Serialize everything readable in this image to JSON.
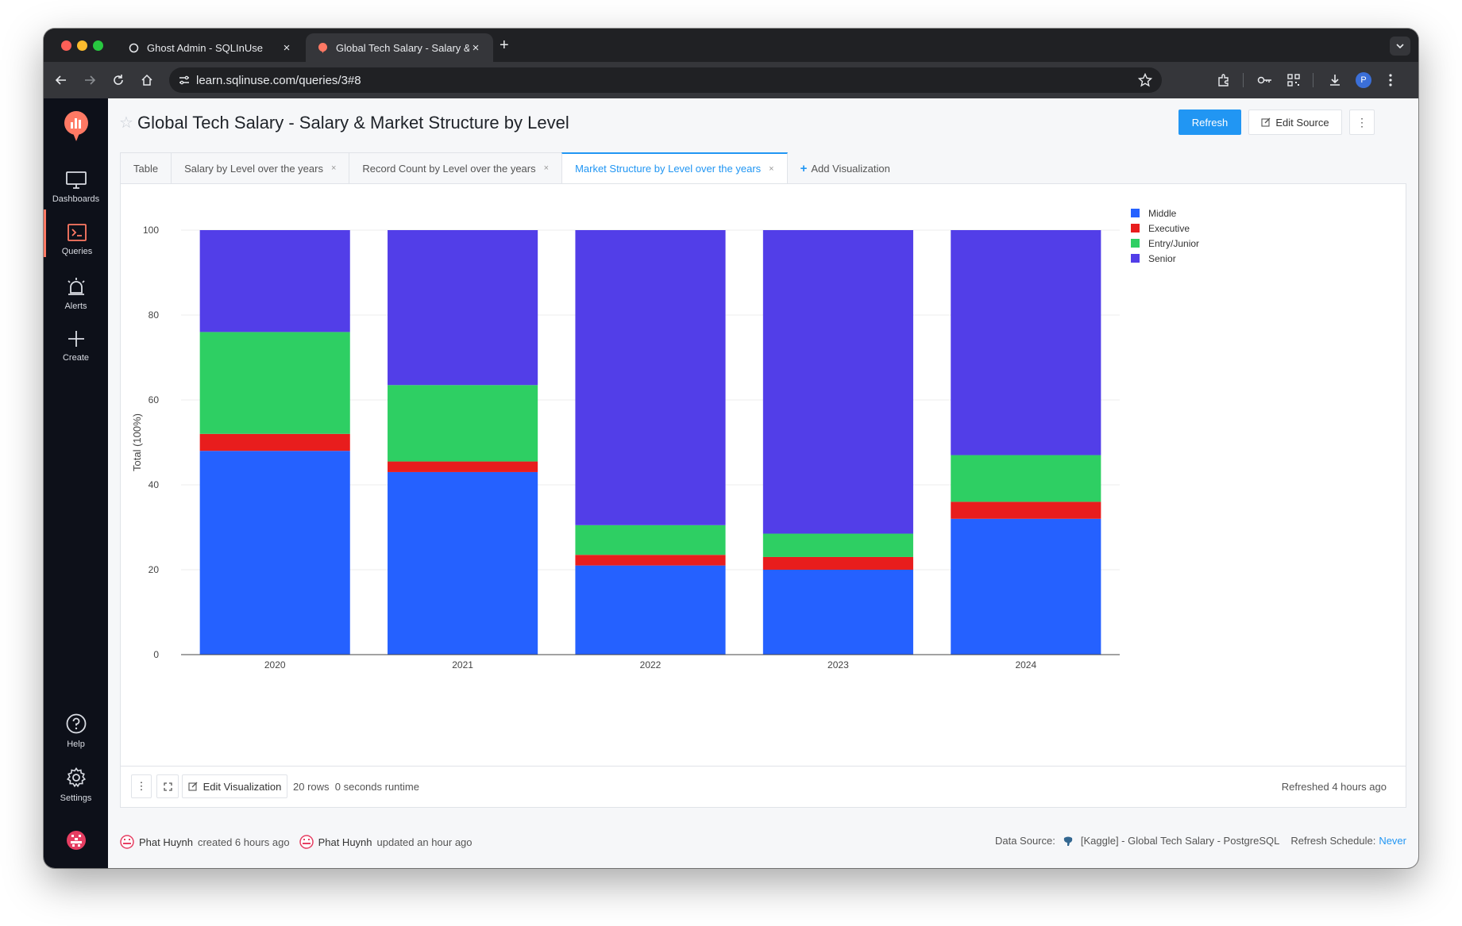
{
  "browser": {
    "tabs": [
      {
        "title": "Ghost Admin - SQLInUse",
        "close": "×"
      },
      {
        "title": "Global Tech Salary - Salary &",
        "close": "×"
      }
    ],
    "new_tab": "+",
    "url": "learn.sqlinuse.com/queries/3#8",
    "profile_initial": "P"
  },
  "sidebar": {
    "items": [
      {
        "label": "Dashboards",
        "icon": "monitor-icon"
      },
      {
        "label": "Queries",
        "icon": "terminal-icon"
      },
      {
        "label": "Alerts",
        "icon": "alarm-icon"
      },
      {
        "label": "Create",
        "icon": "plus-icon"
      }
    ],
    "bottom": [
      {
        "label": "Help",
        "icon": "help-icon"
      },
      {
        "label": "Settings",
        "icon": "gear-icon"
      }
    ]
  },
  "header": {
    "title": "Global Tech Salary - Salary & Market Structure by Level",
    "refresh_label": "Refresh",
    "edit_source_label": "Edit Source",
    "more": "⋮"
  },
  "viz_tabs": [
    {
      "label": "Table"
    },
    {
      "label": "Salary by Level over the years",
      "close": "×"
    },
    {
      "label": "Record Count by Level over the years",
      "close": "×"
    },
    {
      "label": "Market Structure by Level over the years",
      "close": "×",
      "active": true
    }
  ],
  "add_viz_label": "Add Visualization",
  "chart_data": {
    "type": "bar",
    "stacked": true,
    "normalized": true,
    "categories": [
      "2020",
      "2021",
      "2022",
      "2023",
      "2024"
    ],
    "series": [
      {
        "name": "Middle",
        "color": "#2561ff",
        "values": [
          48,
          43,
          21,
          20,
          32
        ]
      },
      {
        "name": "Executive",
        "color": "#e81d1d",
        "values": [
          4,
          2.5,
          2.5,
          3,
          4
        ]
      },
      {
        "name": "Entry/Junior",
        "color": "#2ecf63",
        "values": [
          24,
          18,
          7,
          5.5,
          11
        ]
      },
      {
        "name": "Senior",
        "color": "#523ee8",
        "values": [
          24,
          36.5,
          69.5,
          71.5,
          53
        ]
      }
    ],
    "ylabel": "Total (100%)",
    "ylim": [
      0,
      100
    ],
    "yticks": [
      0,
      20,
      40,
      60,
      80,
      100
    ],
    "grid": true,
    "legend": "top-right"
  },
  "footer": {
    "edit_viz_label": "Edit Visualization",
    "meta": "20 rows  0 seconds runtime",
    "refreshed": "Refreshed 4 hours ago"
  },
  "info": {
    "creator": "Phat Huynh",
    "created": "created 6 hours ago",
    "updater": "Phat Huynh",
    "updated": "updated an hour ago",
    "data_source_label": "Data Source:",
    "data_source": "[Kaggle] - Global Tech Salary - PostgreSQL",
    "schedule_label": "Refresh Schedule:",
    "schedule": "Never"
  }
}
